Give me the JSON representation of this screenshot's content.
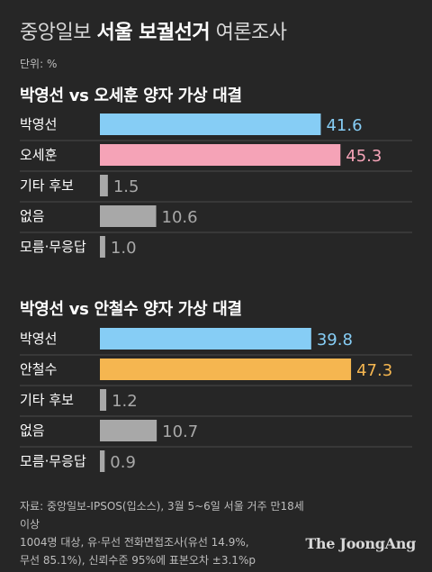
{
  "header": {
    "title_prefix": "중앙일보",
    "title_emphasis": "서울 보궐선거",
    "title_suffix": "여론조사",
    "unit": "단위: %"
  },
  "colors": {
    "background": "#262626",
    "park": "#86cdf5",
    "oh": "#f5a3b7",
    "ahn": "#f5b650",
    "neutral": "#a8a8a8"
  },
  "chart_data": [
    {
      "type": "bar",
      "title": "박영선 vs 오세훈 양자 가상 대결",
      "categories": [
        "박영선",
        "오세훈",
        "기타 후보",
        "없음",
        "모름·무응답"
      ],
      "values": [
        41.6,
        45.3,
        1.5,
        10.6,
        1.0
      ],
      "value_labels": [
        "41.6",
        "45.3",
        "1.5",
        "10.6",
        "1.0"
      ],
      "colors": [
        "#86cdf5",
        "#f5a3b7",
        "#a8a8a8",
        "#a8a8a8",
        "#a8a8a8"
      ],
      "label_colors": [
        "#86cdf5",
        "#f5a3b7",
        "#a8a8a8",
        "#a8a8a8",
        "#a8a8a8"
      ],
      "xlim": [
        0,
        50
      ]
    },
    {
      "type": "bar",
      "title": "박영선 vs 안철수 양자 가상 대결",
      "categories": [
        "박영선",
        "안철수",
        "기타 후보",
        "없음",
        "모름·무응답"
      ],
      "values": [
        39.8,
        47.3,
        1.2,
        10.7,
        0.9
      ],
      "value_labels": [
        "39.8",
        "47.3",
        "1.2",
        "10.7",
        "0.9"
      ],
      "colors": [
        "#86cdf5",
        "#f5b650",
        "#a8a8a8",
        "#a8a8a8",
        "#a8a8a8"
      ],
      "label_colors": [
        "#86cdf5",
        "#f5b650",
        "#a8a8a8",
        "#a8a8a8",
        "#a8a8a8"
      ],
      "xlim": [
        0,
        50
      ]
    }
  ],
  "source": {
    "lines": [
      "자료: 중앙일보-IPSOS(입소스), 3월 5~6일 서울 거주 만18세 이상",
      "1004명 대상, 유·무선 전화면접조사(유선 14.9%,",
      "무선 85.1%), 신뢰수준 95%에 표본오차 ±3.1%p"
    ]
  },
  "logo": "The JoongAng"
}
